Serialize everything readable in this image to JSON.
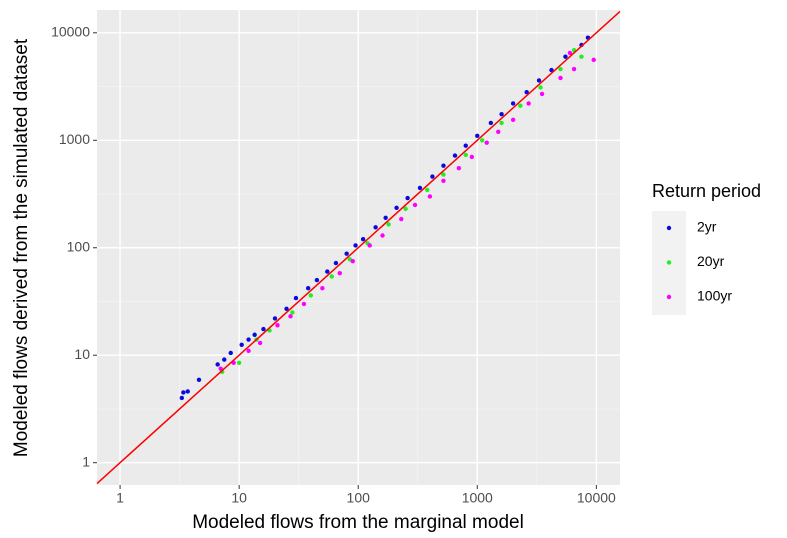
{
  "chart_data": {
    "type": "scatter",
    "x_label": "Modeled flows from the marginal model",
    "y_label": "Modeled flows derived from the simulated dataset",
    "legend_title": "Return period",
    "legend_position": "right",
    "log_x": true,
    "log_y": true,
    "grid": true,
    "identity_line": true,
    "identity_color": "#ff0000",
    "xlim": [
      0.64,
      15800
    ],
    "ylim": [
      0.62,
      16300
    ],
    "xticks": [
      1,
      10,
      100,
      1000,
      10000
    ],
    "yticks": [
      1,
      10,
      100,
      1000,
      10000
    ],
    "series": [
      {
        "name": "2yr",
        "color": "#0a0adc",
        "x": [
          3.3,
          3.4,
          3.7,
          4.6,
          6.6,
          7.5,
          8.5,
          10.5,
          12,
          13.5,
          16,
          20,
          25,
          30,
          38,
          45,
          55,
          65,
          80,
          95,
          110,
          140,
          170,
          210,
          260,
          330,
          420,
          520,
          650,
          800,
          1000,
          1300,
          1600,
          2000,
          2600,
          3300,
          4200,
          5500,
          7500,
          8500
        ],
        "values": [
          4.0,
          4.5,
          4.6,
          5.9,
          8.2,
          9.1,
          10.5,
          12.5,
          14,
          15.5,
          17.5,
          22,
          27,
          34,
          42,
          50,
          60,
          72,
          88,
          105,
          120,
          155,
          190,
          235,
          290,
          360,
          460,
          580,
          720,
          890,
          1100,
          1450,
          1750,
          2200,
          2800,
          3600,
          4500,
          6000,
          7700,
          9000
        ]
      },
      {
        "name": "20yr",
        "color": "#22ee22",
        "x": [
          7.2,
          10,
          14,
          18,
          28,
          40,
          60,
          85,
          120,
          180,
          250,
          380,
          520,
          800,
          1100,
          1600,
          2300,
          3400,
          5000,
          6500,
          7500
        ],
        "values": [
          7.0,
          8.5,
          14,
          17,
          25,
          36,
          54,
          78,
          110,
          165,
          230,
          345,
          480,
          730,
          1000,
          1450,
          2100,
          3100,
          4600,
          6900,
          6000
        ]
      },
      {
        "name": "100yr",
        "color": "#ff00ff",
        "x": [
          7,
          9,
          12,
          15,
          21,
          27,
          35,
          50,
          70,
          90,
          125,
          160,
          230,
          300,
          400,
          520,
          700,
          900,
          1200,
          1500,
          2000,
          2700,
          3500,
          5000,
          6500,
          9500,
          6000
        ],
        "values": [
          7.5,
          8.5,
          11,
          13,
          19,
          23,
          30,
          42,
          58,
          75,
          105,
          130,
          185,
          250,
          300,
          420,
          550,
          700,
          950,
          1200,
          1550,
          2200,
          2700,
          3800,
          4600,
          5600,
          6500
        ]
      }
    ]
  }
}
